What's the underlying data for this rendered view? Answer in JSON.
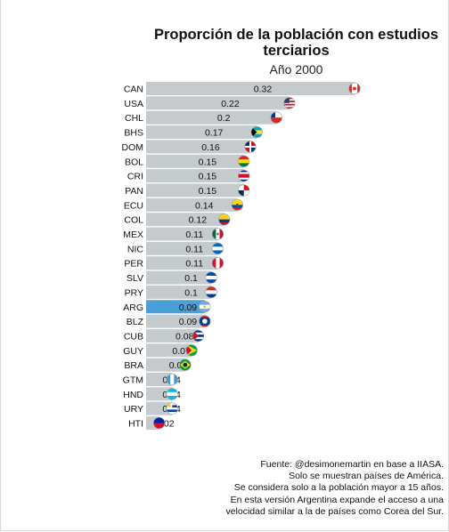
{
  "title": "Proporción de la población  con estudios\nterciarios",
  "subtitle": "Año 2000",
  "chart_data": {
    "type": "bar",
    "orientation": "horizontal",
    "title": "Proporción de la población  con estudios terciarios",
    "subtitle": "Año 2000",
    "categories": [
      "CAN",
      "USA",
      "CHL",
      "BHS",
      "DOM",
      "BOL",
      "CRI",
      "PAN",
      "ECU",
      "COL",
      "MEX",
      "NIC",
      "PER",
      "SLV",
      "PRY",
      "ARG",
      "BLZ",
      "CUB",
      "GUY",
      "BRA",
      "GTM",
      "HND",
      "URY",
      "HTI"
    ],
    "values": [
      0.32,
      0.22,
      0.2,
      0.17,
      0.16,
      0.15,
      0.15,
      0.15,
      0.14,
      0.12,
      0.11,
      0.11,
      0.11,
      0.1,
      0.1,
      0.09,
      0.09,
      0.08,
      0.07,
      0.06,
      0.04,
      0.04,
      0.04,
      0.02
    ],
    "value_labels": [
      "0.32",
      "0.22",
      "0.2",
      "0.17",
      "0.16",
      "0.15",
      "0.15",
      "0.15",
      "0.14",
      "0.12",
      "0.11",
      "0.11",
      "0.11",
      "0.1",
      "0.1",
      "0.09",
      "0.09",
      "0.08",
      "0.07",
      "0.06",
      "0.04",
      "0.04",
      "0.04",
      "0.02"
    ],
    "highlight_category": "ARG",
    "xlim": [
      0,
      0.32
    ],
    "grid": false,
    "legend": "none",
    "colors": {
      "bar": "#c5cacd",
      "highlight": "#4a9fd8",
      "label": "#111111"
    },
    "flag_icons": [
      "canada-flag-icon",
      "usa-flag-icon",
      "chile-flag-icon",
      "bahamas-flag-icon",
      "dominican-republic-flag-icon",
      "bolivia-flag-icon",
      "costa-rica-flag-icon",
      "panama-flag-icon",
      "ecuador-flag-icon",
      "colombia-flag-icon",
      "mexico-flag-icon",
      "nicaragua-flag-icon",
      "peru-flag-icon",
      "el-salvador-flag-icon",
      "paraguay-flag-icon",
      "argentina-flag-icon",
      "belize-flag-icon",
      "cuba-flag-icon",
      "guyana-flag-icon",
      "brazil-flag-icon",
      "guatemala-flag-icon",
      "honduras-flag-icon",
      "uruguay-flag-icon",
      "haiti-flag-icon"
    ]
  },
  "source_lines": [
    "Fuente: @desimonemartin en base a IIASA.",
    "Solo se muestran países de América.",
    "Se considera solo a la población mayor a 15 años.",
    "En esta versión Argentina expande el acceso a una",
    "velocidad similar a la de países como Corea del Sur."
  ]
}
